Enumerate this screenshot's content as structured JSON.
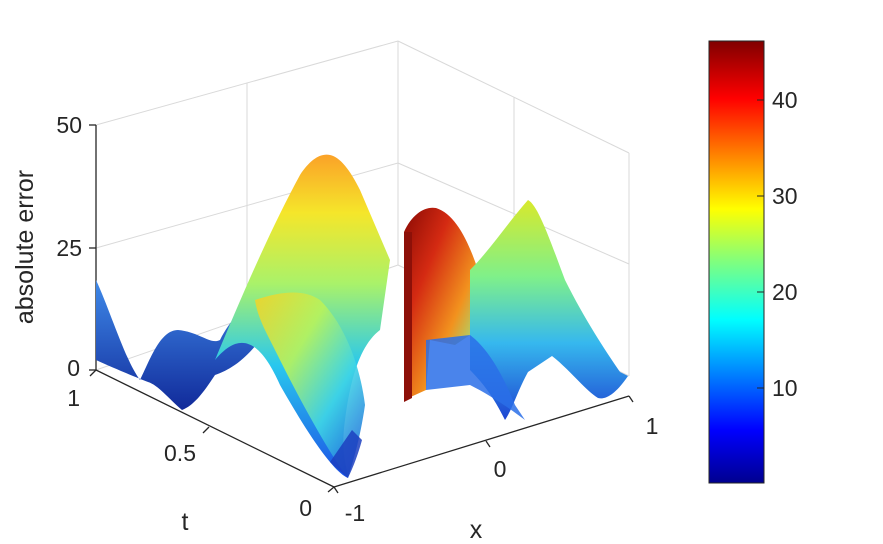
{
  "chart_data": {
    "type": "surface",
    "xlabel": "x",
    "ylabel": "t",
    "zlabel": "absolute error",
    "xlim": [
      -1,
      1
    ],
    "ylim": [
      0,
      1
    ],
    "zlim": [
      0,
      50
    ],
    "x_ticks": [
      "-1",
      "0",
      "1"
    ],
    "t_ticks": [
      "0",
      "0.5",
      "1"
    ],
    "z_ticks": [
      "0",
      "25",
      "50"
    ],
    "colorbar": {
      "ticks": [
        "10",
        "20",
        "30",
        "40"
      ],
      "range": [
        0.3,
        46
      ],
      "colormap": "jet"
    },
    "grid": true,
    "surface_samples": {
      "x": [
        -1.0,
        -0.75,
        -0.5,
        -0.25,
        0.0,
        0.25,
        0.5,
        0.75,
        1.0
      ],
      "t": [
        0.0,
        0.5,
        1.0
      ],
      "note_units": "absolute error",
      "t0": [
        8,
        2,
        18,
        30,
        46,
        30,
        15,
        3,
        4
      ],
      "t0_5": [
        4,
        3,
        32,
        22,
        40,
        8,
        27,
        8,
        2
      ],
      "t1": [
        18,
        2,
        10,
        8,
        26,
        10,
        24,
        2,
        6
      ]
    }
  }
}
